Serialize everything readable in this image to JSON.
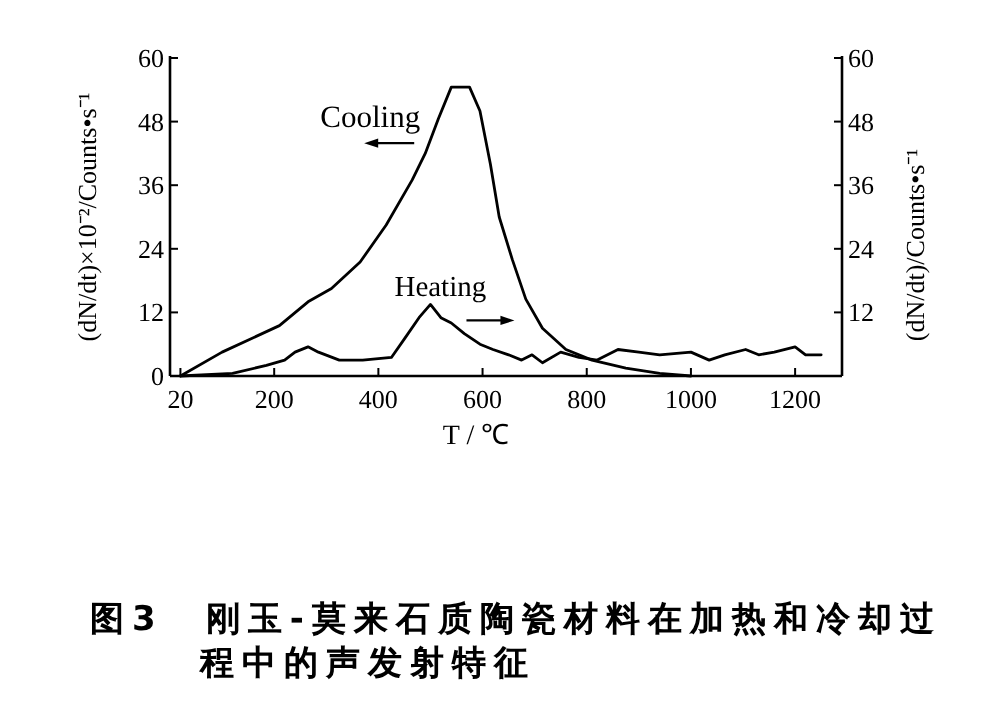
{
  "chart_data": {
    "type": "line",
    "xlabel": "T / ℃",
    "ylabel": "(dN/dt)×10⁻²/Counts•s⁻¹",
    "y2label": "(dN/dt)/Counts•s⁻¹",
    "xlim": [
      0,
      1290
    ],
    "xticks": [
      20,
      200,
      400,
      600,
      800,
      1000,
      1200
    ],
    "ylim": [
      0,
      60
    ],
    "yticks": [
      0,
      12,
      24,
      36,
      48,
      60
    ],
    "y2lim": [
      0,
      60
    ],
    "y2ticks": [
      12,
      24,
      36,
      48,
      60
    ],
    "series": [
      {
        "name": "Cooling",
        "color": "#000000",
        "x": [
          20,
          100,
          210,
          265,
          310,
          365,
          415,
          465,
          490,
          515,
          540,
          575,
          595,
          615,
          632,
          657,
          683,
          715,
          760,
          810,
          875,
          940,
          1000
        ],
        "values": [
          0,
          4.5,
          9.5,
          14,
          16.5,
          21.5,
          28.5,
          37,
          42,
          48.5,
          54.5,
          54.5,
          50,
          40,
          30,
          22,
          14.5,
          9,
          5,
          3,
          1.5,
          0.5,
          0
        ]
      },
      {
        "name": "Heating",
        "color": "#000000",
        "axis": "y2",
        "x": [
          20,
          120,
          185,
          220,
          240,
          265,
          285,
          325,
          370,
          425,
          450,
          478,
          500,
          520,
          540,
          565,
          595,
          620,
          650,
          675,
          695,
          715,
          750,
          785,
          820,
          860,
          900,
          940,
          1000,
          1035,
          1065,
          1105,
          1130,
          1160,
          1200,
          1220,
          1250
        ],
        "values": [
          0,
          0.5,
          2,
          3,
          4.5,
          5.5,
          4.5,
          3,
          3,
          3.5,
          7,
          11,
          13.5,
          11,
          10,
          8,
          6,
          5,
          4,
          3,
          4,
          2.5,
          4.5,
          3.5,
          3,
          5,
          4.5,
          4,
          4.5,
          3,
          4,
          5,
          4,
          4.5,
          5.5,
          4,
          4
        ]
      }
    ],
    "annotations": [
      "图3　刚玉-莫来石质陶瓷材料在加热和冷却过程中的声发射特征"
    ],
    "grid": false,
    "marker": "none",
    "line_style": "solid"
  }
}
